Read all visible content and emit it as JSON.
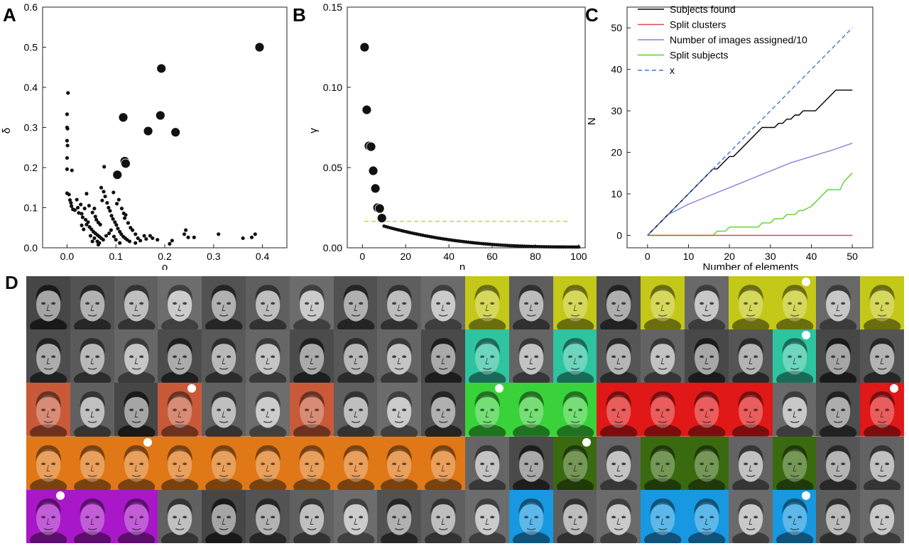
{
  "panels": {
    "A": {
      "letter": "A",
      "chart_data": {
        "type": "scatter",
        "xlabel": "ρ",
        "ylabel": "δ",
        "xlim": [
          -0.05,
          0.45
        ],
        "ylim": [
          0,
          0.6
        ],
        "xticks": [
          "0.0",
          "0.1",
          "0.2",
          "0.3",
          "0.4"
        ],
        "yticks": [
          "0.0",
          "0.1",
          "0.2",
          "0.3",
          "0.4",
          "0.5",
          "0.6"
        ],
        "xtick_values": [
          0,
          0.1,
          0.2,
          0.3,
          0.4
        ],
        "ytick_values": [
          0,
          0.1,
          0.2,
          0.3,
          0.4,
          0.5,
          0.6
        ],
        "centers": [
          [
            0.394,
            0.5
          ],
          [
            0.193,
            0.447
          ],
          [
            0.115,
            0.325
          ],
          [
            0.191,
            0.33
          ],
          [
            0.166,
            0.291
          ],
          [
            0.222,
            0.288
          ],
          [
            0.118,
            0.216
          ],
          [
            0.12,
            0.21
          ],
          [
            0.103,
            0.182
          ]
        ],
        "points": [
          [
            0.002,
            0.386
          ],
          [
            0.0,
            0.333
          ],
          [
            0.0,
            0.3
          ],
          [
            0.001,
            0.297
          ],
          [
            0.0,
            0.267
          ],
          [
            0.001,
            0.255
          ],
          [
            0.0,
            0.224
          ],
          [
            0.0,
            0.196
          ],
          [
            0.01,
            0.193
          ],
          [
            0.0,
            0.136
          ],
          [
            0.004,
            0.133
          ],
          [
            0.006,
            0.119
          ],
          [
            0.008,
            0.112
          ],
          [
            0.009,
            0.104
          ],
          [
            0.012,
            0.096
          ],
          [
            0.016,
            0.094
          ],
          [
            0.024,
            0.087
          ],
          [
            0.03,
            0.085
          ],
          [
            0.032,
            0.076
          ],
          [
            0.038,
            0.07
          ],
          [
            0.043,
            0.064
          ],
          [
            0.04,
            0.058
          ],
          [
            0.046,
            0.052
          ],
          [
            0.05,
            0.046
          ],
          [
            0.054,
            0.04
          ],
          [
            0.058,
            0.036
          ],
          [
            0.062,
            0.032
          ],
          [
            0.066,
            0.028
          ],
          [
            0.07,
            0.024
          ],
          [
            0.074,
            0.02
          ],
          [
            0.062,
            0.016
          ],
          [
            0.066,
            0.012
          ],
          [
            0.04,
            0.135
          ],
          [
            0.045,
            0.105
          ],
          [
            0.052,
            0.088
          ],
          [
            0.056,
            0.098
          ],
          [
            0.058,
            0.078
          ],
          [
            0.06,
            0.07
          ],
          [
            0.064,
            0.063
          ],
          [
            0.068,
            0.058
          ],
          [
            0.07,
            0.15
          ],
          [
            0.072,
            0.118
          ],
          [
            0.075,
            0.14
          ],
          [
            0.078,
            0.128
          ],
          [
            0.082,
            0.112
          ],
          [
            0.085,
            0.1
          ],
          [
            0.088,
            0.092
          ],
          [
            0.091,
            0.08
          ],
          [
            0.094,
            0.072
          ],
          [
            0.098,
            0.064
          ],
          [
            0.101,
            0.057
          ],
          [
            0.104,
            0.048
          ],
          [
            0.108,
            0.04
          ],
          [
            0.111,
            0.034
          ],
          [
            0.115,
            0.028
          ],
          [
            0.119,
            0.024
          ],
          [
            0.123,
            0.02
          ],
          [
            0.128,
            0.016
          ],
          [
            0.102,
            0.11
          ],
          [
            0.106,
            0.12
          ],
          [
            0.112,
            0.098
          ],
          [
            0.116,
            0.086
          ],
          [
            0.118,
            0.074
          ],
          [
            0.09,
            0.044
          ],
          [
            0.086,
            0.036
          ],
          [
            0.08,
            0.03
          ],
          [
            0.096,
            0.028
          ],
          [
            0.1,
            0.02
          ],
          [
            0.108,
            0.012
          ],
          [
            0.076,
            0.202
          ],
          [
            0.12,
            0.082
          ],
          [
            0.125,
            0.062
          ],
          [
            0.13,
            0.05
          ],
          [
            0.134,
            0.044
          ],
          [
            0.14,
            0.034
          ],
          [
            0.145,
            0.024
          ],
          [
            0.15,
            0.018
          ],
          [
            0.158,
            0.03
          ],
          [
            0.162,
            0.022
          ],
          [
            0.17,
            0.03
          ],
          [
            0.175,
            0.024
          ],
          [
            0.185,
            0.02
          ],
          [
            0.14,
            0.012
          ],
          [
            0.21,
            0.01
          ],
          [
            0.215,
            0.018
          ],
          [
            0.243,
            0.044
          ],
          [
            0.24,
            0.034
          ],
          [
            0.248,
            0.026
          ],
          [
            0.26,
            0.026
          ],
          [
            0.31,
            0.034
          ],
          [
            0.36,
            0.024
          ],
          [
            0.378,
            0.026
          ],
          [
            0.385,
            0.034
          ],
          [
            0.03,
            0.056
          ],
          [
            0.034,
            0.046
          ],
          [
            0.02,
            0.12
          ],
          [
            0.028,
            0.108
          ],
          [
            0.036,
            0.098
          ],
          [
            0.048,
            0.03
          ],
          [
            0.056,
            0.024
          ],
          [
            0.064,
            0.008
          ],
          [
            0.052,
            0.016
          ],
          [
            0.022,
            0.1
          ],
          [
            0.095,
            0.138
          ]
        ]
      }
    },
    "B": {
      "letter": "B",
      "chart_data": {
        "type": "scatter",
        "xlabel": "n",
        "ylabel": "γ",
        "xlim": [
          -7,
          103
        ],
        "ylim": [
          0,
          0.15
        ],
        "xticks": [
          "0",
          "20",
          "40",
          "60",
          "80",
          "100"
        ],
        "yticks": [
          "0.00",
          "0.05",
          "0.10",
          "0.15"
        ],
        "xtick_values": [
          0,
          20,
          40,
          60,
          80,
          100
        ],
        "ytick_values": [
          0,
          0.05,
          0.1,
          0.15
        ],
        "threshold": 0.0165,
        "threshold_color": "#c9d420",
        "centers": [
          [
            1,
            0.125
          ],
          [
            2,
            0.086
          ],
          [
            3,
            0.0635
          ],
          [
            4,
            0.063
          ],
          [
            5,
            0.048
          ],
          [
            6,
            0.037
          ],
          [
            7,
            0.025
          ],
          [
            8,
            0.0245
          ],
          [
            9,
            0.0185
          ]
        ],
        "tail": {
          "n_start": 10,
          "n_end": 100,
          "first": 0.0135,
          "last": 0.0005
        }
      }
    },
    "C": {
      "letter": "C",
      "chart_data": {
        "type": "line",
        "xlabel": "Number of elements",
        "ylabel": "N",
        "xlim": [
          -5,
          55
        ],
        "ylim": [
          -3,
          55
        ],
        "xticks": [
          "0",
          "10",
          "20",
          "30",
          "40",
          "50"
        ],
        "yticks": [
          "0",
          "10",
          "20",
          "30",
          "40",
          "50"
        ],
        "xtick_values": [
          0,
          10,
          20,
          30,
          40,
          50
        ],
        "ytick_values": [
          0,
          10,
          20,
          30,
          40,
          50
        ],
        "legend_position": "top",
        "series": [
          {
            "name": "Subjects found",
            "color": "#000000",
            "dash": false,
            "x": [
              0,
              16,
              17,
              20,
              21,
              28,
              31,
              32,
              33,
              34,
              35,
              36,
              37,
              38,
              40,
              41,
              42,
              43,
              46,
              50
            ],
            "y": [
              0,
              16,
              16,
              19,
              19,
              26,
              26,
              27,
              27,
              28,
              28,
              29,
              29,
              30,
              30,
              30,
              31,
              32,
              35,
              35
            ]
          },
          {
            "name": "Split clusters",
            "color": "#e04a4a",
            "dash": false,
            "x": [
              0,
              50
            ],
            "y": [
              0,
              0
            ]
          },
          {
            "name": "Number of images assigned/10",
            "color": "#8a80e0",
            "dash": false,
            "x": [
              0,
              5,
              10,
              15,
              20,
              25,
              30,
              35,
              40,
              45,
              50
            ],
            "y": [
              0,
              5,
              7.5,
              9.5,
              11.5,
              13.5,
              15.5,
              17.5,
              19,
              20.5,
              22.2
            ]
          },
          {
            "name": "Split subjects",
            "color": "#5ad22a",
            "dash": false,
            "x": [
              0,
              16,
              17,
              19,
              20,
              27,
              28,
              30,
              31,
              33,
              34,
              36,
              37,
              38,
              40,
              41,
              42,
              43,
              44,
              45,
              46,
              47,
              48,
              50
            ],
            "y": [
              0,
              0,
              1,
              1,
              2,
              2,
              3,
              3,
              4,
              4,
              5,
              5,
              6,
              6,
              7,
              8,
              9,
              10,
              11,
              11,
              11,
              11,
              13,
              15
            ]
          },
          {
            "name": "x",
            "color": "#3a78d8",
            "dash": true,
            "x": [
              0,
              50
            ],
            "y": [
              0,
              50
            ]
          }
        ]
      }
    },
    "D": {
      "letter": "D",
      "rows": [
        {
          "tints": [
            "",
            "",
            "",
            "",
            "",
            "",
            "",
            "",
            "",
            "",
            "#c4c818",
            "",
            "#c4c818",
            "",
            "#c4c818",
            "",
            "#c4c818",
            "#c4c818",
            "",
            "#c4c818"
          ],
          "marks": [
            17
          ]
        },
        {
          "tints": [
            "",
            "",
            "",
            "",
            "",
            "",
            "",
            "",
            "",
            "",
            "#2ec4a0",
            "",
            "#2ec4a0",
            "",
            "",
            "",
            "",
            "#2ec4a0",
            "",
            ""
          ],
          "marks": [
            17
          ]
        },
        {
          "tints": [
            "#c85a3a",
            "",
            "",
            "#c85a3a",
            "",
            "",
            "#c85a3a",
            "",
            "",
            "",
            "#3ad23a",
            "#3ad23a",
            "#3ad23a",
            "#e01818",
            "#e01818",
            "#e01818",
            "#e01818",
            "",
            "",
            "#e01818"
          ],
          "marks": [
            3,
            10,
            19
          ]
        },
        {
          "tints": [
            "#e07818",
            "#e07818",
            "#e07818",
            "#e07818",
            "#e07818",
            "#e07818",
            "#e07818",
            "#e07818",
            "#e07818",
            "#e07818",
            "",
            "",
            "#3a6a10",
            "",
            "#3a6a10",
            "#3a6a10",
            "",
            "#3a6a10",
            "",
            ""
          ],
          "marks": [
            2,
            12
          ]
        },
        {
          "tints": [
            "#a818c8",
            "#a818c8",
            "#a818c8",
            "",
            "",
            "",
            "",
            "",
            "",
            "",
            "",
            "#1898e0",
            "",
            "",
            "#1898e0",
            "#1898e0",
            "",
            "#1898e0",
            "",
            ""
          ],
          "marks": [
            0,
            17
          ]
        }
      ]
    }
  }
}
